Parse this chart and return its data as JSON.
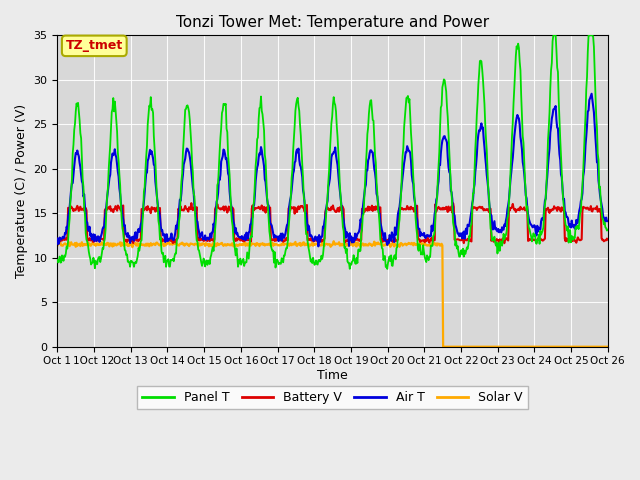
{
  "title": "Tonzi Tower Met: Temperature and Power",
  "ylabel": "Temperature (C) / Power (V)",
  "xlabel": "Time",
  "annotation_label": "TZ_tmet",
  "annotation_box_color": "#ffff99",
  "annotation_text_color": "#cc0000",
  "annotation_edge_color": "#aaaa00",
  "background_color": "#ebebeb",
  "plot_bg_color": "#d8d8d8",
  "line_colors": {
    "panel_t": "#00dd00",
    "battery_v": "#dd0000",
    "air_t": "#0000dd",
    "solar_v": "#ffaa00"
  },
  "legend_labels": [
    "Panel T",
    "Battery V",
    "Air T",
    "Solar V"
  ],
  "xtick_positions": [
    0,
    1,
    2,
    3,
    4,
    5,
    6,
    7,
    8,
    9,
    10,
    11,
    12,
    13,
    14,
    15
  ],
  "xtick_labels": [
    "Oct 1",
    "1Oct 12",
    "Oct 13",
    "Oct 14",
    "Oct 15",
    "Oct 16",
    "Oct 17",
    "Oct 18",
    "Oct 19",
    "Oct 20",
    "Oct 21",
    "Oct 22",
    "Oct 23",
    "Oct 24",
    "Oct 25",
    "Oct 26"
  ],
  "ytick_positions": [
    0,
    5,
    10,
    15,
    20,
    25,
    30,
    35
  ],
  "ytick_labels": [
    "0",
    "5",
    "10",
    "15",
    "20",
    "25",
    "30",
    "35"
  ],
  "ylim": [
    0,
    35
  ],
  "xlim": [
    0,
    15
  ],
  "grid_color": "#ffffff",
  "line_width": 1.3
}
